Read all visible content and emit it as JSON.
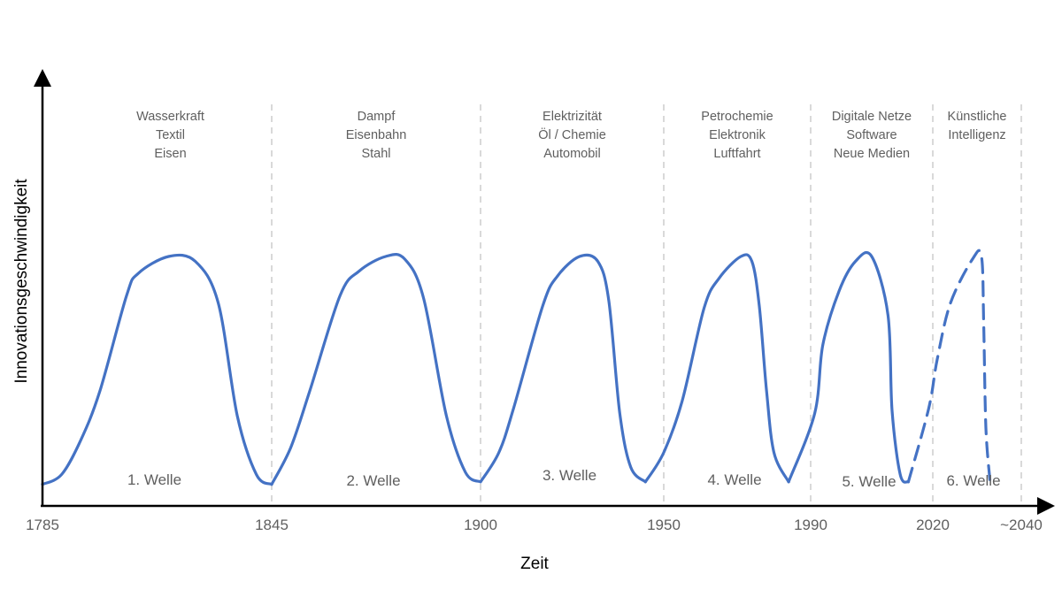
{
  "chart_data": {
    "type": "line",
    "xlabel": "Zeit",
    "ylabel": "Innovationsgeschwindigkeit",
    "x_ticks": [
      "1785",
      "1845",
      "1900",
      "1950",
      "1990",
      "2020",
      "~2040"
    ],
    "x_tick_values": [
      1785,
      1845,
      1900,
      1950,
      1990,
      2020,
      2040
    ],
    "xlim": [
      1785,
      2044
    ],
    "ylim": [
      0,
      1
    ],
    "grid": false,
    "legend": "none",
    "series_color": "#4472c4",
    "boundary_color": "#d9d9d9",
    "waves": [
      {
        "label": "1. Welle",
        "technologies": [
          "Wasserkraft",
          "Textil",
          "Eisen"
        ],
        "start": 1785,
        "end": 1845,
        "points": [
          [
            1785,
            0.07
          ],
          [
            1790,
            0.11
          ],
          [
            1795,
            0.25
          ],
          [
            1800,
            0.45
          ],
          [
            1807,
            0.84
          ],
          [
            1810,
            0.93
          ],
          [
            1818,
            1.0
          ],
          [
            1825,
            0.98
          ],
          [
            1831,
            0.81
          ],
          [
            1836,
            0.35
          ],
          [
            1841,
            0.11
          ],
          [
            1845,
            0.07
          ]
        ],
        "style": "solid"
      },
      {
        "label": "2. Welle",
        "technologies": [
          "Dampf",
          "Eisenbahn",
          "Stahl"
        ],
        "start": 1845,
        "end": 1900,
        "points": [
          [
            1845,
            0.07
          ],
          [
            1850,
            0.22
          ],
          [
            1855,
            0.45
          ],
          [
            1863,
            0.84
          ],
          [
            1868,
            0.94
          ],
          [
            1875,
            1.0
          ],
          [
            1880,
            0.99
          ],
          [
            1885,
            0.83
          ],
          [
            1891,
            0.35
          ],
          [
            1896,
            0.12
          ],
          [
            1900,
            0.08
          ]
        ],
        "style": "solid"
      },
      {
        "label": "3. Welle",
        "technologies": [
          "Elektrizität",
          "Öl / Chemie",
          "Automobil"
        ],
        "start": 1900,
        "end": 1950,
        "points": [
          [
            1900,
            0.08
          ],
          [
            1905,
            0.2
          ],
          [
            1909,
            0.38
          ],
          [
            1917,
            0.8
          ],
          [
            1921,
            0.92
          ],
          [
            1927,
            1.0
          ],
          [
            1932,
            0.98
          ],
          [
            1935,
            0.82
          ],
          [
            1938,
            0.36
          ],
          [
            1941,
            0.14
          ],
          [
            1945,
            0.08
          ]
        ],
        "style": "solid"
      },
      {
        "label": "4. Welle",
        "technologies": [
          "Petrochemie",
          "Elektronik",
          "Luftfahrt"
        ],
        "start": 1950,
        "end": 1990,
        "points": [
          [
            1945,
            0.08
          ],
          [
            1950,
            0.2
          ],
          [
            1955,
            0.41
          ],
          [
            1961,
            0.79
          ],
          [
            1965,
            0.91
          ],
          [
            1971,
            1.0
          ],
          [
            1974,
            0.98
          ],
          [
            1976,
            0.8
          ],
          [
            1978,
            0.45
          ],
          [
            1980,
            0.2
          ],
          [
            1984,
            0.08
          ]
        ],
        "style": "solid"
      },
      {
        "label": "5. Welle",
        "technologies": [
          "Digitale Netze",
          "Software",
          "Neue Medien"
        ],
        "start": 1990,
        "end": 2020,
        "points": [
          [
            1984,
            0.08
          ],
          [
            1991,
            0.36
          ],
          [
            1993,
            0.64
          ],
          [
            1997,
            0.86
          ],
          [
            2001,
            0.98
          ],
          [
            2005,
            1.0
          ],
          [
            2009,
            0.76
          ],
          [
            2010,
            0.37
          ],
          [
            2012,
            0.11
          ],
          [
            2014,
            0.08
          ]
        ],
        "style": "solid"
      },
      {
        "label": "6. Welle",
        "technologies": [
          "Künstliche",
          "Intelligenz"
        ],
        "start": 2020,
        "end": 2040,
        "points": [
          [
            2014,
            0.08
          ],
          [
            2019,
            0.38
          ],
          [
            2021,
            0.58
          ],
          [
            2024,
            0.81
          ],
          [
            2029,
            0.99
          ],
          [
            2031,
            1.0
          ],
          [
            2031.5,
            0.73
          ],
          [
            2032,
            0.3
          ],
          [
            2033,
            0.07
          ]
        ],
        "style": "dashed"
      }
    ]
  }
}
